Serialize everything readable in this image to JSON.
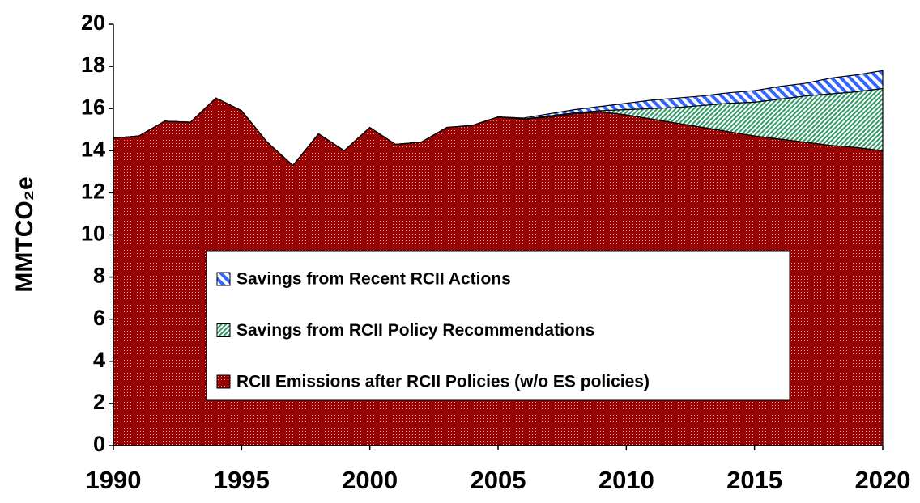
{
  "chart_data": {
    "type": "stacked_area",
    "y_label": "MMTCO₂e",
    "x": [
      1990,
      1991,
      1992,
      1993,
      1994,
      1995,
      1996,
      1997,
      1998,
      1999,
      2000,
      2001,
      2002,
      2003,
      2004,
      2005,
      2006,
      2007,
      2008,
      2009,
      2010,
      2011,
      2012,
      2013,
      2014,
      2015,
      2016,
      2017,
      2018,
      2019,
      2020
    ],
    "series": [
      {
        "name": "RCII Emissions after RCII Policies (w/o ES policies)",
        "color": "#990000",
        "values": [
          14.6,
          14.7,
          15.4,
          15.35,
          16.5,
          15.9,
          14.4,
          13.3,
          14.8,
          14.0,
          15.1,
          14.3,
          14.4,
          15.1,
          15.2,
          15.6,
          15.5,
          15.6,
          15.75,
          15.85,
          15.7,
          15.5,
          15.3,
          15.1,
          14.9,
          14.7,
          14.55,
          14.4,
          14.25,
          14.15,
          14.0
        ]
      },
      {
        "name": "Savings from RCII Policy Recommendations",
        "color": "#339966",
        "values": [
          0,
          0,
          0,
          0,
          0,
          0,
          0,
          0,
          0,
          0,
          0,
          0,
          0,
          0,
          0,
          0,
          0,
          0.05,
          0.05,
          0.05,
          0.25,
          0.5,
          0.75,
          1.05,
          1.35,
          1.6,
          1.9,
          2.2,
          2.45,
          2.65,
          2.95
        ]
      },
      {
        "name": "Savings from Recent RCII Actions",
        "color": "#3366ff",
        "values": [
          0,
          0,
          0,
          0,
          0,
          0,
          0,
          0,
          0,
          0,
          0,
          0,
          0,
          0,
          0,
          0,
          0.05,
          0.1,
          0.15,
          0.2,
          0.3,
          0.4,
          0.45,
          0.45,
          0.5,
          0.55,
          0.6,
          0.6,
          0.75,
          0.8,
          0.85
        ]
      }
    ],
    "xlim": [
      1990,
      2020
    ],
    "xticks": [
      1990,
      1995,
      2000,
      2005,
      2010,
      2015,
      2020
    ],
    "ylim": [
      0,
      20
    ],
    "yticks": [
      0,
      2,
      4,
      6,
      8,
      10,
      12,
      14,
      16,
      18,
      20
    ],
    "grid": false,
    "legend": "center"
  }
}
